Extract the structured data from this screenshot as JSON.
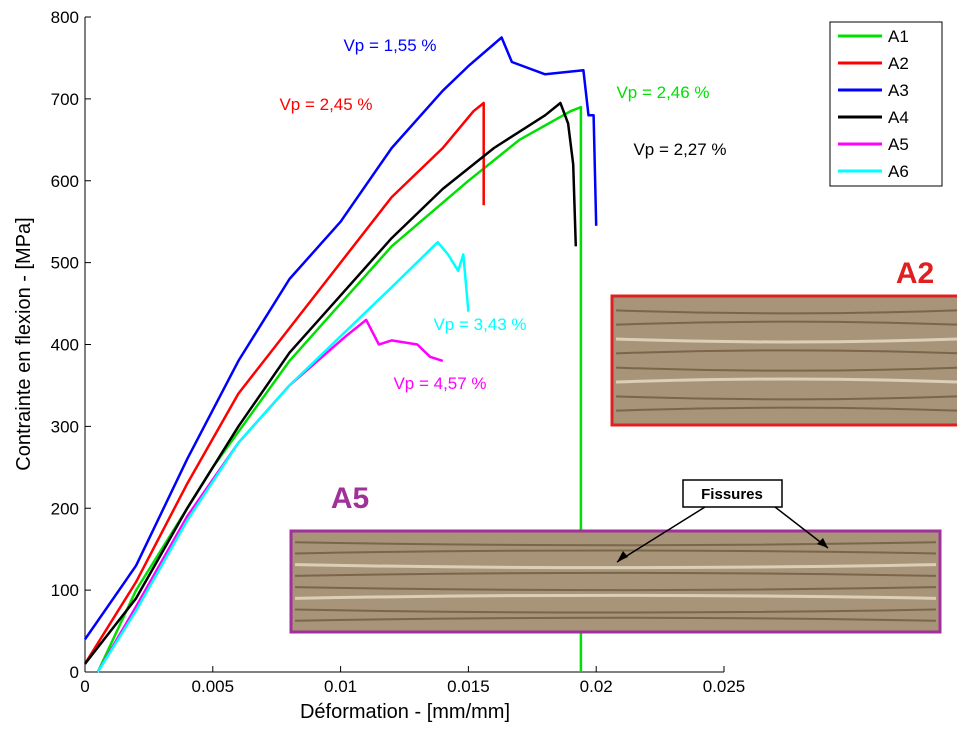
{
  "chart_data": {
    "type": "line",
    "xlabel": "Déformation - [mm/mm]",
    "ylabel": "Contrainte en flexion - [MPa]",
    "xlim": [
      0,
      0.025
    ],
    "ylim": [
      0,
      800
    ],
    "xticks": [
      0,
      0.005,
      0.01,
      0.015,
      0.02,
      0.025
    ],
    "yticks": [
      0,
      100,
      200,
      300,
      400,
      500,
      600,
      700,
      800
    ],
    "legend": "top-right",
    "series": [
      {
        "name": "A1",
        "color": "#00e000",
        "x": [
          0.0005,
          0.002,
          0.005,
          0.008,
          0.01,
          0.012,
          0.015,
          0.017,
          0.019,
          0.0194,
          0.0194
        ],
        "values": [
          0,
          100,
          250,
          380,
          450,
          520,
          600,
          650,
          685,
          690,
          0
        ]
      },
      {
        "name": "A2",
        "color": "#ff0000",
        "x": [
          0,
          0.002,
          0.004,
          0.006,
          0.008,
          0.01,
          0.012,
          0.014,
          0.0152,
          0.0156,
          0.0156
        ],
        "values": [
          10,
          110,
          230,
          340,
          420,
          500,
          580,
          640,
          685,
          695,
          570
        ]
      },
      {
        "name": "A3",
        "color": "#0000ff",
        "x": [
          0,
          0.002,
          0.004,
          0.006,
          0.008,
          0.01,
          0.012,
          0.014,
          0.015,
          0.0163,
          0.0167,
          0.018,
          0.0195,
          0.0197,
          0.0199,
          0.02
        ],
        "values": [
          40,
          130,
          260,
          380,
          480,
          550,
          640,
          710,
          740,
          775,
          745,
          730,
          735,
          680,
          680,
          545
        ]
      },
      {
        "name": "A4",
        "color": "#000000",
        "x": [
          0,
          0.002,
          0.004,
          0.006,
          0.008,
          0.01,
          0.012,
          0.014,
          0.016,
          0.018,
          0.0186,
          0.0189,
          0.0191,
          0.0192
        ],
        "values": [
          10,
          90,
          200,
          300,
          390,
          460,
          530,
          590,
          640,
          680,
          695,
          670,
          620,
          520
        ]
      },
      {
        "name": "A5",
        "color": "#ff00ff",
        "x": [
          0.0005,
          0.002,
          0.004,
          0.006,
          0.008,
          0.0102,
          0.011,
          0.0115,
          0.012,
          0.013,
          0.0135,
          0.014
        ],
        "values": [
          0,
          80,
          190,
          280,
          350,
          410,
          430,
          400,
          405,
          400,
          385,
          380
        ]
      },
      {
        "name": "A6",
        "color": "#00ffff",
        "x": [
          0.0005,
          0.002,
          0.004,
          0.006,
          0.008,
          0.01,
          0.012,
          0.0138,
          0.0142,
          0.0146,
          0.0148,
          0.015
        ],
        "values": [
          0,
          75,
          185,
          280,
          350,
          410,
          470,
          525,
          510,
          490,
          510,
          440
        ]
      }
    ],
    "annotations": [
      {
        "text": "Vp = 1,55 %",
        "color": "#0000ff"
      },
      {
        "text": "Vp = 2,45 %",
        "color": "#ff0000"
      },
      {
        "text": "Vp = 2,46 %",
        "color": "#00e000"
      },
      {
        "text": "Vp = 2,27 %",
        "color": "#000000"
      },
      {
        "text": "Vp = 3,43 %",
        "color": "#00ffff"
      },
      {
        "text": "Vp = 4,57 %",
        "color": "#ff00ff"
      }
    ],
    "insets": [
      {
        "label": "A2",
        "color": "#e02020"
      },
      {
        "label": "A5",
        "color": "#a0309a"
      }
    ],
    "callout": "Fissures"
  }
}
